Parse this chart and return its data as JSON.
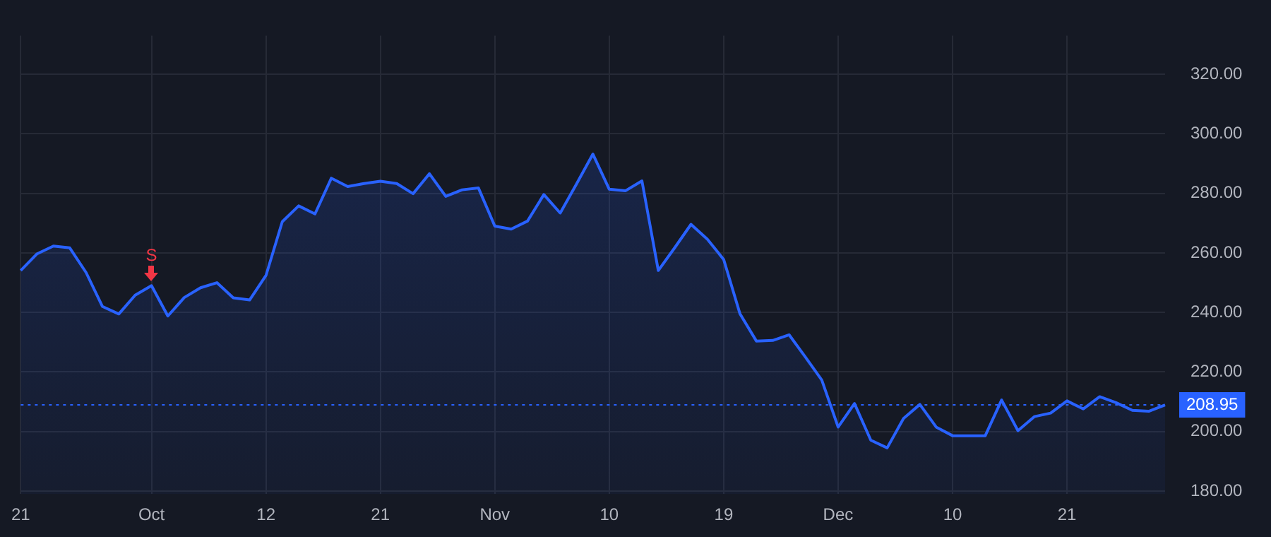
{
  "chart_data": {
    "type": "area",
    "categories": [
      "21",
      null,
      null,
      null,
      null,
      null,
      null,
      null,
      "Oct",
      null,
      null,
      null,
      null,
      null,
      null,
      "12",
      null,
      null,
      null,
      null,
      null,
      null,
      "21",
      null,
      null,
      null,
      null,
      null,
      null,
      "Nov",
      null,
      null,
      null,
      null,
      null,
      null,
      "10",
      null,
      null,
      null,
      null,
      null,
      null,
      "19",
      null,
      null,
      null,
      null,
      null,
      null,
      "Dec",
      null,
      null,
      null,
      null,
      null,
      null,
      "10",
      null,
      null,
      null,
      null,
      null,
      null,
      "21",
      null,
      null,
      null,
      null,
      null,
      null
    ],
    "series": [
      {
        "color": "#2962ff",
        "values": [
          254.1,
          259.7,
          262.3,
          261.7,
          253.4,
          242.0,
          239.5,
          245.8,
          249.0,
          238.8,
          245.0,
          248.3,
          250.0,
          244.9,
          244.2,
          252.4,
          270.5,
          275.8,
          273.1,
          285.1,
          282.3,
          283.3,
          284.1,
          283.3,
          279.9,
          286.6,
          279.0,
          281.2,
          281.8,
          269.0,
          268.0,
          270.7,
          279.6,
          273.4,
          283.2,
          293.2,
          281.4,
          280.9,
          284.2,
          254.1,
          261.7,
          269.6,
          264.6,
          257.8,
          239.5,
          230.4,
          230.6,
          232.5,
          225.0,
          217.3,
          201.5,
          209.4,
          197.1,
          194.5,
          204.4,
          209.1,
          201.5,
          198.6,
          198.6,
          198.6,
          210.6,
          200.3,
          205.0,
          206.2,
          210.3,
          207.6,
          211.7,
          209.7,
          207.1,
          206.8,
          208.95
        ]
      }
    ],
    "ylim": [
      179,
      333
    ],
    "yticks": [
      {
        "value": 180,
        "label": "180.00"
      },
      {
        "value": 200,
        "label": "200.00"
      },
      {
        "value": 220,
        "label": "220.00"
      },
      {
        "value": 240,
        "label": "240.00"
      },
      {
        "value": 260,
        "label": "260.00"
      },
      {
        "value": 280,
        "label": "280.00"
      },
      {
        "value": 300,
        "label": "300.00"
      },
      {
        "value": 320,
        "label": "320.00"
      }
    ],
    "ref_lines": [
      {
        "axis": "y",
        "value": 208.95,
        "label": "208.95",
        "color": "#2962ff",
        "line_style": "dotted"
      }
    ],
    "annotations": [
      {
        "text": "S",
        "x": "Oct",
        "y": 249.0
      }
    ],
    "grid": true
  }
}
